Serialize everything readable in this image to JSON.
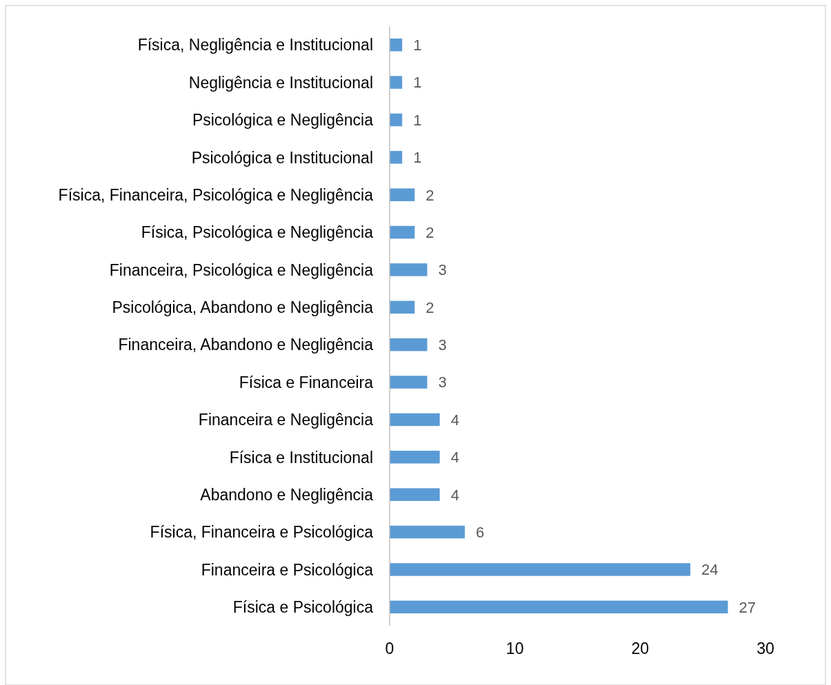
{
  "chart_data": {
    "type": "bar",
    "orientation": "horizontal",
    "categories": [
      "Física, Negligência e Institucional",
      "Negligência e Institucional",
      "Psicológica e Negligência",
      "Psicológica e Institucional",
      "Física, Financeira, Psicológica e Negligência",
      "Física, Psicológica e Negligência",
      "Financeira, Psicológica e Negligência",
      "Psicológica, Abandono e Negligência",
      "Financeira, Abandono e Negligência",
      "Física e Financeira",
      "Financeira e Negligência",
      "Física e Institucional",
      "Abandono e Negligência",
      "Física, Financeira e Psicológica",
      "Financeira e Psicológica",
      "Física e Psicológica"
    ],
    "values": [
      1,
      1,
      1,
      1,
      2,
      2,
      3,
      2,
      3,
      3,
      4,
      4,
      4,
      6,
      24,
      27
    ],
    "color": "#5b9bd5",
    "xlim": [
      0,
      30
    ],
    "xticks": [
      0,
      10,
      20,
      30
    ],
    "grid": false,
    "data_labels": true
  }
}
